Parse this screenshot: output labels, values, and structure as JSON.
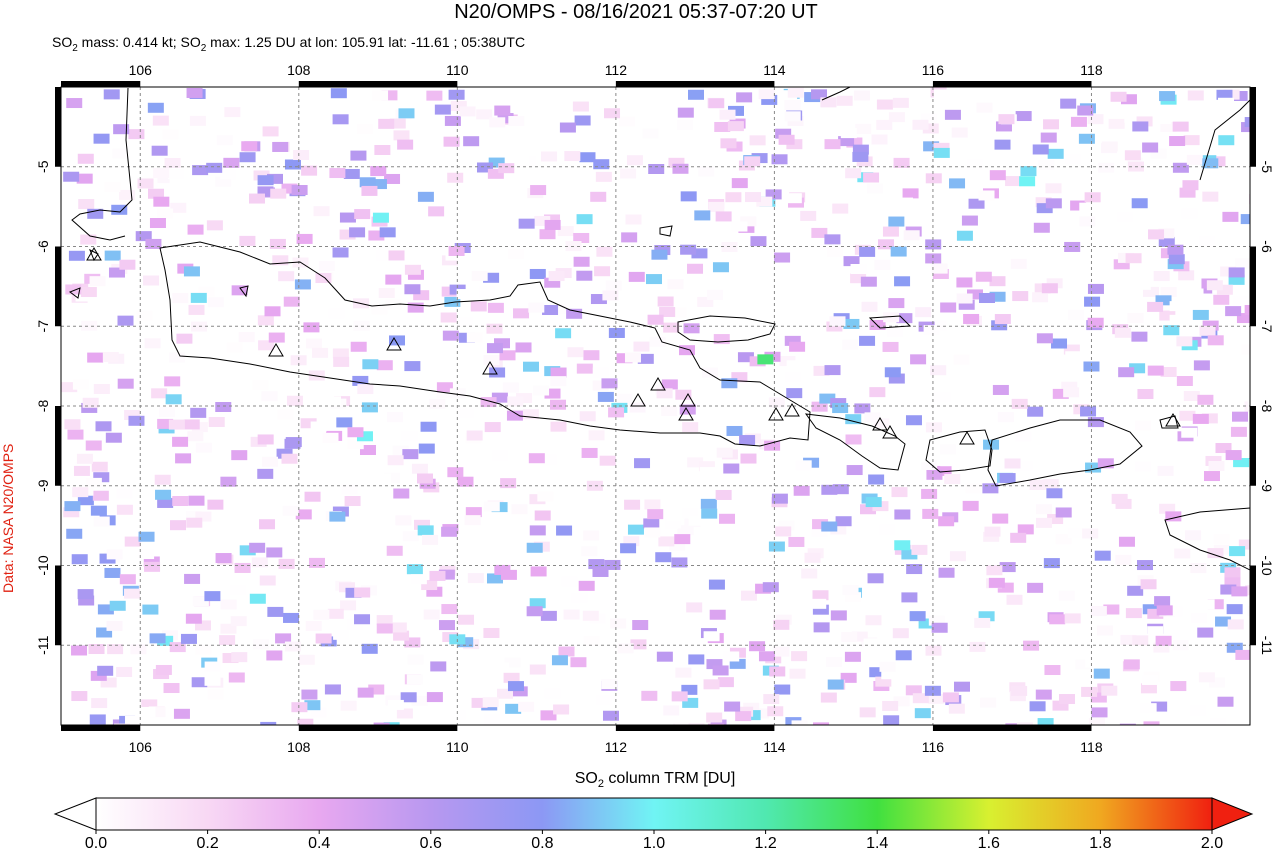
{
  "map": {
    "title": "N20/OMPS - 08/16/2021 05:37-07:20 UT",
    "subtitle_parts": [
      "SO",
      "2",
      " mass: 0.414 kt; SO",
      "2",
      " max: 1.25 DU at lon: 105.91 lat: -11.61 ; 05:38UTC"
    ],
    "credit": "Data: NASA N20/OMPS",
    "xlim": [
      105,
      120
    ],
    "ylim": [
      -12,
      -4
    ],
    "lon_ticks": [
      106,
      108,
      110,
      112,
      114,
      116,
      118
    ],
    "lat_ticks": [
      -5,
      -6,
      -7,
      -8,
      -9,
      -10,
      -11
    ],
    "colorbar": {
      "label_parts": [
        "SO",
        "2",
        " column TRM [DU]"
      ],
      "lim": [
        0,
        2
      ],
      "ticks": [
        {
          "value": 0,
          "label": "0.0"
        },
        {
          "value": 0.2,
          "label": "0.2"
        },
        {
          "value": 0.4,
          "label": "0.4"
        },
        {
          "value": 0.6,
          "label": "0.6"
        },
        {
          "value": 0.8,
          "label": "0.8"
        },
        {
          "value": 1,
          "label": "1.0"
        },
        {
          "value": 1.2,
          "label": "1.2"
        },
        {
          "value": 1.4,
          "label": "1.4"
        },
        {
          "value": 1.6,
          "label": "1.6"
        },
        {
          "value": 1.8,
          "label": "1.8"
        },
        {
          "value": 2,
          "label": "2.0"
        }
      ],
      "colors": [
        "#ffffff",
        "#f8d8f4",
        "#e8a8f0",
        "#b898f0",
        "#8c98f4",
        "#70f4f4",
        "#50e8b0",
        "#40e040",
        "#d8f030",
        "#f0a820",
        "#f02010"
      ]
    }
  }
}
